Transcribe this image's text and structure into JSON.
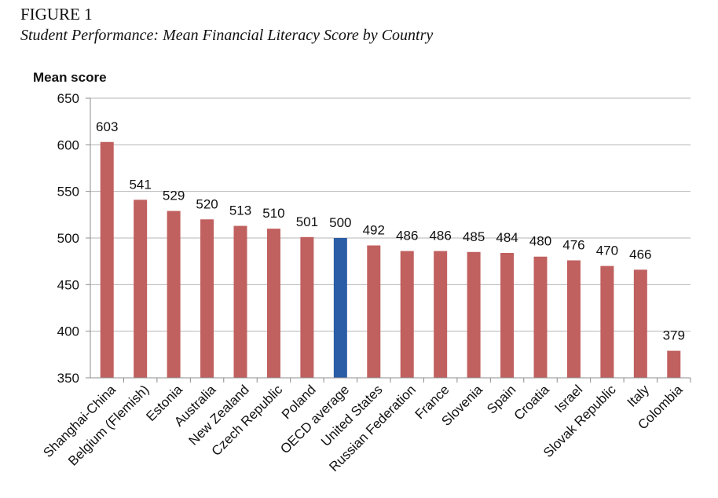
{
  "figure_label": "FIGURE 1",
  "figure_title": "Student Performance: Mean Financial Literacy Score by Country",
  "chart_data": {
    "type": "bar",
    "ylabel": "Mean score",
    "ylim": [
      350,
      650
    ],
    "yticks": [
      350,
      400,
      450,
      500,
      550,
      600,
      650
    ],
    "grid": true,
    "categories": [
      "Shanghai-China",
      "Belgium (Flemish)",
      "Estonia",
      "Australia",
      "New Zealand",
      "Czech Republic",
      "Poland",
      "OECD average",
      "United States",
      "Russian Federation",
      "France",
      "Slovenia",
      "Spain",
      "Croatia",
      "Israel",
      "Slovak Republic",
      "Italy",
      "Colombia"
    ],
    "values": [
      603,
      541,
      529,
      520,
      513,
      510,
      501,
      500,
      492,
      486,
      486,
      485,
      484,
      480,
      476,
      470,
      466,
      379
    ],
    "highlight_index": 7,
    "colors": {
      "bar": "#c0605f",
      "highlight": "#2b5ca6",
      "grid": "#b5b5b5",
      "axis": "#8c8c8c"
    }
  }
}
